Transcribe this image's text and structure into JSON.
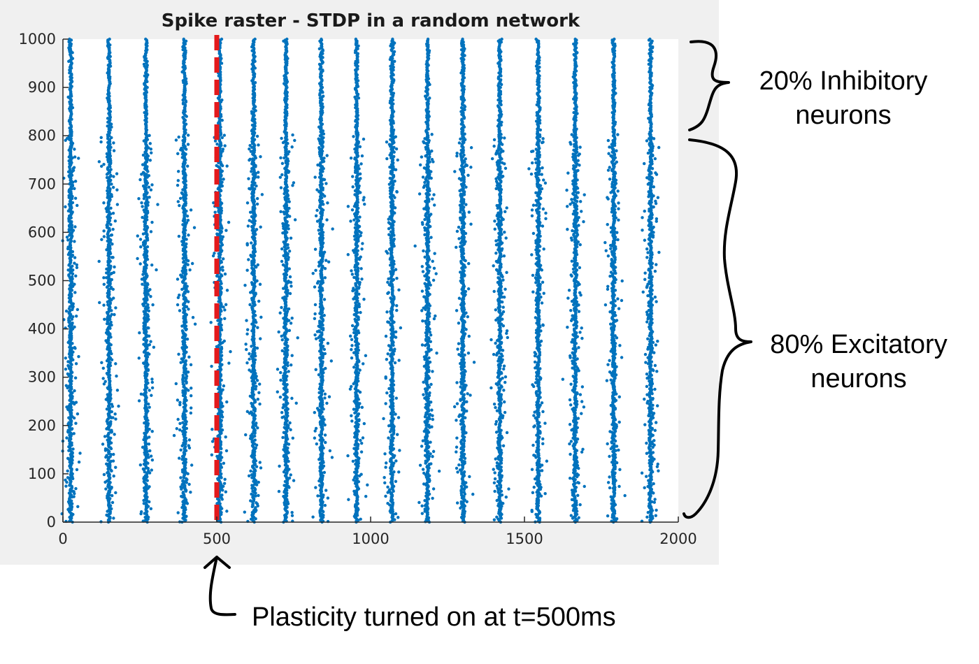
{
  "chart_data": {
    "type": "scatter",
    "title": "Spike raster - STDP in a random network",
    "xlabel": "",
    "ylabel": "",
    "xlim": [
      0,
      2000
    ],
    "ylim": [
      0,
      1000
    ],
    "xticks": [
      0,
      500,
      1000,
      1500,
      2000
    ],
    "yticks": [
      0,
      100,
      200,
      300,
      400,
      500,
      600,
      700,
      800,
      900,
      1000
    ],
    "grid": false,
    "series": [
      {
        "marker_color": "#0072BD",
        "burst_times_ms": [
          25,
          150,
          270,
          395,
          510,
          620,
          725,
          840,
          955,
          1070,
          1185,
          1300,
          1420,
          1545,
          1665,
          1790,
          1910
        ],
        "inhibitory_neuron_range": [
          800,
          1000
        ],
        "excitatory_neuron_range": [
          0,
          800
        ]
      }
    ],
    "reference_line": {
      "x": 500,
      "color": "#e41a1c",
      "style": "dashed"
    }
  },
  "annotations": {
    "inhibitory_line1": "20% Inhibitory",
    "inhibitory_line2": "neurons",
    "excitatory_line1": "80% Excitatory",
    "excitatory_line2": "neurons",
    "plasticity": "Plasticity turned on at t=500ms"
  },
  "colors": {
    "figure_background": "#f0f0f0",
    "axes_background": "#ffffff",
    "spike": "#0072BD",
    "marker_line": "#e41a1c",
    "annotation": "#000000"
  }
}
